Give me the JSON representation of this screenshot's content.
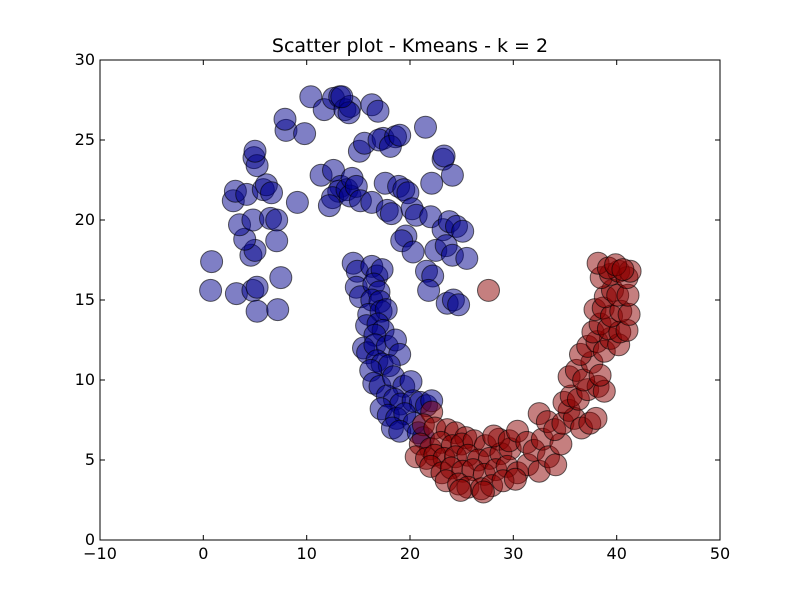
{
  "chart_data": {
    "type": "scatter",
    "title": "Scatter plot - Kmeans - k = 2",
    "xlabel": "",
    "ylabel": "",
    "xlim": [
      -10,
      50
    ],
    "ylim": [
      0,
      30
    ],
    "xticks": [
      "−10",
      "0",
      "10",
      "20",
      "30",
      "40",
      "50"
    ],
    "yticks": [
      "0",
      "5",
      "10",
      "15",
      "20",
      "25",
      "30"
    ],
    "xtick_values": [
      -10,
      0,
      10,
      20,
      30,
      40,
      50
    ],
    "ytick_values": [
      0,
      5,
      10,
      15,
      20,
      25,
      30
    ],
    "grid": false,
    "legend": "none",
    "colors": {
      "cluster_0": "#00008b",
      "cluster_1": "#8b0000",
      "marker_edge": "#000000",
      "axes": "#000000"
    },
    "series": [
      {
        "color": "#00008b",
        "points": [
          [
            0.8,
            17.4
          ],
          [
            0.7,
            15.6
          ],
          [
            3.2,
            15.4
          ],
          [
            4.8,
            15.6
          ],
          [
            5.2,
            15.8
          ],
          [
            5.2,
            14.3
          ],
          [
            7.2,
            14.4
          ],
          [
            7.5,
            16.4
          ],
          [
            4.6,
            17.8
          ],
          [
            5.0,
            18.1
          ],
          [
            4.0,
            18.8
          ],
          [
            3.5,
            19.7
          ],
          [
            4.8,
            20.0
          ],
          [
            6.5,
            20.1
          ],
          [
            7.1,
            20.0
          ],
          [
            7.1,
            18.7
          ],
          [
            2.9,
            21.2
          ],
          [
            3.1,
            21.8
          ],
          [
            4.2,
            21.6
          ],
          [
            5.8,
            21.9
          ],
          [
            6.1,
            22.2
          ],
          [
            6.6,
            21.7
          ],
          [
            4.9,
            23.9
          ],
          [
            5.2,
            23.4
          ],
          [
            5.0,
            24.3
          ],
          [
            9.1,
            21.1
          ],
          [
            8.0,
            25.6
          ],
          [
            7.9,
            26.3
          ],
          [
            9.8,
            25.4
          ],
          [
            10.4,
            27.7
          ],
          [
            11.7,
            26.9
          ],
          [
            12.6,
            27.6
          ],
          [
            13.2,
            27.7
          ],
          [
            13.7,
            26.9
          ],
          [
            14.2,
            27.1
          ],
          [
            14.1,
            26.7
          ],
          [
            13.4,
            27.7
          ],
          [
            15.1,
            24.3
          ],
          [
            15.6,
            24.8
          ],
          [
            16.3,
            27.2
          ],
          [
            16.9,
            26.8
          ],
          [
            17.4,
            25.1
          ],
          [
            17.0,
            25.0
          ],
          [
            18.6,
            25.2
          ],
          [
            18.1,
            24.6
          ],
          [
            19.0,
            25.3
          ],
          [
            21.5,
            25.8
          ],
          [
            22.1,
            22.3
          ],
          [
            23.2,
            23.8
          ],
          [
            23.3,
            24.0
          ],
          [
            24.1,
            22.8
          ],
          [
            11.4,
            22.8
          ],
          [
            12.6,
            23.1
          ],
          [
            13.3,
            22.1
          ],
          [
            13.1,
            21.8
          ],
          [
            12.5,
            21.4
          ],
          [
            12.2,
            20.9
          ],
          [
            13.9,
            21.9
          ],
          [
            14.2,
            21.5
          ],
          [
            14.4,
            22.6
          ],
          [
            14.8,
            22.1
          ],
          [
            15.2,
            21.2
          ],
          [
            16.3,
            21.1
          ],
          [
            17.6,
            22.3
          ],
          [
            17.8,
            20.6
          ],
          [
            18.2,
            20.4
          ],
          [
            18.9,
            22.1
          ],
          [
            19.4,
            21.9
          ],
          [
            19.8,
            21.7
          ],
          [
            20.2,
            20.7
          ],
          [
            20.6,
            20.3
          ],
          [
            19.6,
            19.0
          ],
          [
            19.2,
            18.7
          ],
          [
            20.3,
            18.0
          ],
          [
            22.0,
            20.2
          ],
          [
            23.2,
            19.4
          ],
          [
            23.8,
            19.9
          ],
          [
            24.5,
            19.6
          ],
          [
            25.1,
            19.3
          ],
          [
            22.5,
            18.1
          ],
          [
            23.5,
            18.4
          ],
          [
            24.1,
            17.8
          ],
          [
            25.5,
            17.6
          ],
          [
            21.6,
            16.8
          ],
          [
            22.2,
            16.5
          ],
          [
            21.8,
            15.6
          ],
          [
            23.6,
            14.8
          ],
          [
            24.2,
            15.0
          ],
          [
            24.7,
            14.7
          ],
          [
            14.5,
            17.3
          ],
          [
            14.9,
            16.8
          ],
          [
            14.8,
            15.8
          ],
          [
            15.2,
            15.2
          ],
          [
            16.3,
            17.1
          ],
          [
            16.8,
            16.5
          ],
          [
            17.3,
            16.9
          ],
          [
            16.5,
            16.0
          ],
          [
            17.0,
            15.5
          ],
          [
            16.3,
            15.0
          ],
          [
            17.1,
            14.9
          ],
          [
            16.0,
            14.1
          ],
          [
            17.2,
            14.3
          ],
          [
            17.7,
            14.4
          ],
          [
            15.8,
            13.4
          ],
          [
            16.9,
            13.5
          ],
          [
            17.4,
            13.1
          ],
          [
            16.6,
            12.8
          ],
          [
            15.5,
            12.0
          ],
          [
            15.9,
            11.7
          ],
          [
            16.6,
            12.2
          ],
          [
            17.8,
            12.1
          ],
          [
            18.6,
            12.5
          ],
          [
            19.0,
            11.6
          ],
          [
            16.8,
            11.2
          ],
          [
            17.3,
            11.0
          ],
          [
            18.0,
            10.9
          ],
          [
            16.2,
            10.6
          ],
          [
            16.5,
            9.8
          ],
          [
            17.1,
            9.6
          ],
          [
            18.4,
            10.2
          ],
          [
            19.4,
            9.6
          ],
          [
            20.1,
            9.9
          ],
          [
            17.8,
            9.0
          ],
          [
            18.5,
            8.8
          ],
          [
            19.1,
            8.5
          ],
          [
            20.3,
            8.7
          ],
          [
            21.0,
            8.6
          ],
          [
            21.6,
            8.4
          ],
          [
            22.1,
            8.7
          ],
          [
            17.2,
            8.2
          ],
          [
            17.9,
            7.8
          ],
          [
            18.7,
            7.6
          ],
          [
            19.5,
            7.9
          ],
          [
            20.4,
            7.3
          ],
          [
            18.3,
            7.0
          ],
          [
            19.0,
            6.8
          ],
          [
            20.8,
            6.7
          ],
          [
            21.3,
            6.4
          ]
        ]
      },
      {
        "color": "#8b0000",
        "points": [
          [
            27.6,
            15.6
          ],
          [
            22.1,
            8.0
          ],
          [
            21.3,
            7.2
          ],
          [
            22.4,
            7.0
          ],
          [
            23.6,
            6.9
          ],
          [
            24.4,
            6.7
          ],
          [
            25.4,
            6.4
          ],
          [
            21.0,
            6.0
          ],
          [
            22.0,
            5.7
          ],
          [
            23.0,
            6.1
          ],
          [
            24.1,
            5.9
          ],
          [
            25.0,
            6.0
          ],
          [
            26.2,
            6.2
          ],
          [
            27.3,
            5.9
          ],
          [
            28.6,
            6.3
          ],
          [
            20.6,
            5.2
          ],
          [
            21.6,
            5.1
          ],
          [
            22.4,
            5.3
          ],
          [
            23.3,
            5.1
          ],
          [
            24.4,
            5.2
          ],
          [
            25.6,
            5.3
          ],
          [
            26.6,
            5.0
          ],
          [
            27.7,
            5.1
          ],
          [
            28.8,
            5.4
          ],
          [
            29.7,
            5.7
          ],
          [
            22.0,
            4.6
          ],
          [
            23.1,
            4.2
          ],
          [
            24.0,
            4.5
          ],
          [
            25.1,
            4.3
          ],
          [
            26.1,
            4.4
          ],
          [
            27.2,
            4.1
          ],
          [
            28.3,
            4.4
          ],
          [
            29.4,
            4.6
          ],
          [
            30.4,
            4.2
          ],
          [
            31.4,
            4.7
          ],
          [
            32.5,
            4.3
          ],
          [
            23.5,
            3.7
          ],
          [
            24.7,
            3.5
          ],
          [
            25.6,
            3.3
          ],
          [
            26.9,
            3.2
          ],
          [
            27.9,
            3.4
          ],
          [
            29.0,
            3.7
          ],
          [
            30.2,
            3.8
          ],
          [
            24.9,
            3.1
          ],
          [
            27.1,
            3.0
          ],
          [
            28.1,
            6.5
          ],
          [
            29.6,
            6.2
          ],
          [
            30.4,
            6.8
          ],
          [
            31.3,
            6.1
          ],
          [
            32.0,
            5.6
          ],
          [
            32.8,
            6.3
          ],
          [
            33.4,
            5.2
          ],
          [
            34.1,
            4.7
          ],
          [
            34.6,
            6.0
          ],
          [
            32.5,
            7.9
          ],
          [
            33.3,
            7.4
          ],
          [
            34.0,
            6.9
          ],
          [
            34.8,
            7.3
          ],
          [
            35.4,
            8.1
          ],
          [
            35.9,
            7.6
          ],
          [
            36.6,
            7.0
          ],
          [
            37.4,
            7.3
          ],
          [
            38.0,
            7.6
          ],
          [
            34.9,
            8.6
          ],
          [
            35.6,
            9.0
          ],
          [
            36.3,
            8.8
          ],
          [
            37.2,
            9.4
          ],
          [
            38.2,
            9.6
          ],
          [
            38.8,
            9.3
          ],
          [
            35.4,
            10.2
          ],
          [
            36.1,
            10.6
          ],
          [
            36.8,
            10.0
          ],
          [
            37.6,
            11.1
          ],
          [
            38.4,
            10.3
          ],
          [
            36.5,
            11.6
          ],
          [
            37.2,
            12.1
          ],
          [
            38.1,
            12.4
          ],
          [
            38.8,
            11.8
          ],
          [
            39.4,
            12.6
          ],
          [
            40.2,
            12.2
          ],
          [
            37.7,
            13.0
          ],
          [
            38.4,
            13.5
          ],
          [
            39.2,
            13.2
          ],
          [
            40.3,
            13.0
          ],
          [
            41.0,
            13.1
          ],
          [
            37.9,
            14.4
          ],
          [
            38.7,
            14.5
          ],
          [
            39.5,
            14.0
          ],
          [
            40.4,
            14.3
          ],
          [
            41.2,
            14.1
          ],
          [
            38.9,
            15.2
          ],
          [
            39.6,
            15.6
          ],
          [
            40.1,
            15.3
          ],
          [
            41.1,
            15.3
          ],
          [
            38.5,
            16.4
          ],
          [
            39.4,
            16.6
          ],
          [
            40.2,
            16.8
          ],
          [
            41.0,
            16.4
          ],
          [
            41.3,
            16.8
          ],
          [
            38.2,
            17.3
          ],
          [
            39.2,
            17.0
          ],
          [
            39.9,
            17.2
          ],
          [
            40.6,
            16.9
          ]
        ]
      }
    ]
  }
}
